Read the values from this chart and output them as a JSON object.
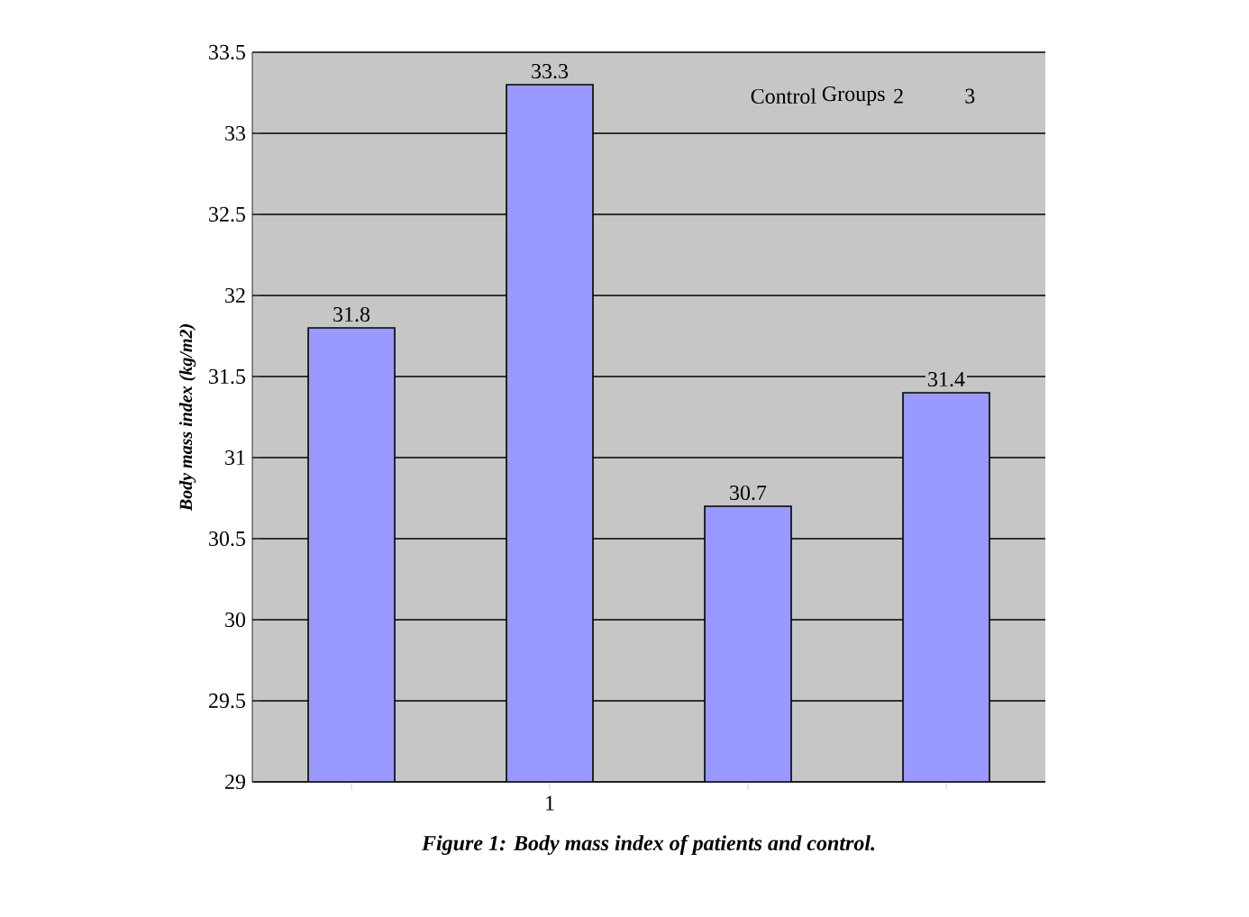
{
  "chart_data": {
    "type": "bar",
    "title": "Figure 1: Body mass index of patients and control.",
    "ylabel": "Body mass index (kg/m2)",
    "categories": [
      null,
      "1",
      null,
      null
    ],
    "values": [
      31.8,
      33.3,
      30.7,
      31.4
    ],
    "color": "#9999ff",
    "ylim": [
      29,
      33.5
    ],
    "yticks": [
      29,
      29.5,
      30,
      30.5,
      31,
      31.5,
      32,
      32.5,
      33,
      33.5
    ],
    "grid": "y",
    "data_labels": true,
    "annotations": [
      "Control",
      "Groups",
      "2",
      "3"
    ]
  }
}
